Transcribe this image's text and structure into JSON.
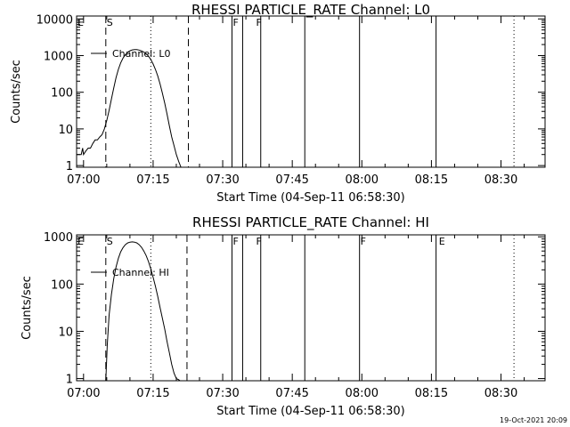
{
  "footer": {
    "timestamp": "19-Oct-2021 20:09"
  },
  "chart_data": [
    {
      "type": "line",
      "title": "RHESSI PARTICLE_RATE Channel: L0",
      "xlabel": "Start Time (04-Sep-11 06:58:30)",
      "ylabel": "Counts/sec",
      "yscale": "log",
      "ylim": [
        0.9,
        12000
      ],
      "xlim_minutes_after_start": [
        0,
        101
      ],
      "xticks": [
        {
          "label": "07:00",
          "min": 1.5
        },
        {
          "label": "07:15",
          "min": 16.5
        },
        {
          "label": "07:30",
          "min": 31.5
        },
        {
          "label": "07:45",
          "min": 46.5
        },
        {
          "label": "08:00",
          "min": 61.5
        },
        {
          "label": "08:15",
          "min": 76.5
        },
        {
          "label": "08:30",
          "min": 91.5
        }
      ],
      "yticks": [
        "1",
        "10",
        "100",
        "1000",
        "10000"
      ],
      "legend": {
        "entry": "Channel: L0",
        "placement": "top-left"
      },
      "series": [
        {
          "name": "Channel: L0",
          "x": [
            0.0,
            0.5,
            1.0,
            1.3,
            1.5,
            2.0,
            2.5,
            3.0,
            3.5,
            4.0,
            4.5,
            5.0,
            5.5,
            6.0,
            6.5,
            7.0,
            7.5,
            8.0,
            8.5,
            9.0,
            9.5,
            10.0,
            10.5,
            11.0,
            11.5,
            12.0,
            12.5,
            13.0,
            13.5,
            14.0,
            14.5,
            15.0,
            15.5,
            16.0,
            16.5,
            17.0,
            17.5,
            18.0,
            18.5,
            19.0,
            19.5,
            20.0,
            20.5,
            21.0,
            21.5,
            22.0,
            22.5
          ],
          "y": [
            2,
            2,
            2,
            3,
            2,
            2.5,
            3,
            3,
            4,
            5,
            5,
            6,
            7,
            10,
            17,
            32,
            65,
            130,
            250,
            420,
            630,
            850,
            1050,
            1220,
            1350,
            1430,
            1460,
            1450,
            1410,
            1340,
            1250,
            1120,
            960,
            780,
            590,
            420,
            280,
            170,
            95,
            50,
            25,
            12,
            6,
            3.5,
            2,
            1.3,
            0.9
          ]
        }
      ],
      "markers": [
        {
          "label": "E",
          "min": 0
        },
        {
          "label": "S",
          "min": 6.3
        },
        {
          "label": "F",
          "min": 33.5
        },
        {
          "label": "F",
          "min": 38.5
        }
      ],
      "marker_lines": [
        {
          "min": 6.3,
          "style": "dashed"
        },
        {
          "min": 16.0,
          "style": "dotted"
        },
        {
          "min": 24.1,
          "style": "dashed"
        },
        {
          "min": 33.5,
          "style": "solid"
        },
        {
          "min": 35.8,
          "style": "solid"
        },
        {
          "min": 39.7,
          "style": "solid"
        },
        {
          "min": 49.2,
          "style": "solid"
        },
        {
          "min": 61.0,
          "style": "solid"
        },
        {
          "min": 77.5,
          "style": "solid"
        },
        {
          "min": 94.3,
          "style": "dotted"
        }
      ]
    },
    {
      "type": "line",
      "title": "RHESSI PARTICLE_RATE Channel: HI",
      "xlabel": "Start Time (04-Sep-11 06:58:30)",
      "ylabel": "Counts/sec",
      "yscale": "log",
      "ylim": [
        0.9,
        1100
      ],
      "xlim_minutes_after_start": [
        0,
        101
      ],
      "xticks": [
        {
          "label": "07:00",
          "min": 1.5
        },
        {
          "label": "07:15",
          "min": 16.5
        },
        {
          "label": "07:30",
          "min": 31.5
        },
        {
          "label": "07:45",
          "min": 46.5
        },
        {
          "label": "08:00",
          "min": 61.5
        },
        {
          "label": "08:15",
          "min": 76.5
        },
        {
          "label": "08:30",
          "min": 91.5
        }
      ],
      "yticks": [
        "1",
        "10",
        "100",
        "1000"
      ],
      "legend": {
        "entry": "Channel: HI",
        "placement": "top-left"
      },
      "series": [
        {
          "name": "Channel: HI",
          "x": [
            6.3,
            6.6,
            7.0,
            7.5,
            8.0,
            8.5,
            9.0,
            9.5,
            10.0,
            10.5,
            11.0,
            11.5,
            12.0,
            12.5,
            13.0,
            13.5,
            14.0,
            14.5,
            15.0,
            15.5,
            16.0,
            16.5,
            17.0,
            17.5,
            18.0,
            18.5,
            19.0,
            19.5,
            20.0,
            20.5,
            21.0,
            21.5,
            22.0,
            22.3
          ],
          "y": [
            0.9,
            5,
            22,
            60,
            130,
            230,
            350,
            480,
            590,
            680,
            740,
            770,
            780,
            770,
            740,
            680,
            600,
            500,
            400,
            300,
            210,
            140,
            90,
            55,
            32,
            19,
            11,
            6,
            3.5,
            2,
            1.3,
            1.0,
            0.95,
            0.9
          ]
        }
      ],
      "markers": [
        {
          "label": "E",
          "min": 0
        },
        {
          "label": "S",
          "min": 6.3
        },
        {
          "label": "F",
          "min": 33.5
        },
        {
          "label": "F",
          "min": 38.5
        },
        {
          "label": "F",
          "min": 61.0
        },
        {
          "label": "E",
          "min": 77.9
        }
      ],
      "marker_lines": [
        {
          "min": 6.3,
          "style": "dashed"
        },
        {
          "min": 16.0,
          "style": "dotted"
        },
        {
          "min": 23.8,
          "style": "dashed"
        },
        {
          "min": 33.5,
          "style": "solid"
        },
        {
          "min": 35.8,
          "style": "solid"
        },
        {
          "min": 39.7,
          "style": "solid"
        },
        {
          "min": 49.2,
          "style": "solid"
        },
        {
          "min": 61.0,
          "style": "solid"
        },
        {
          "min": 77.5,
          "style": "solid"
        },
        {
          "min": 94.3,
          "style": "dotted"
        }
      ]
    }
  ]
}
